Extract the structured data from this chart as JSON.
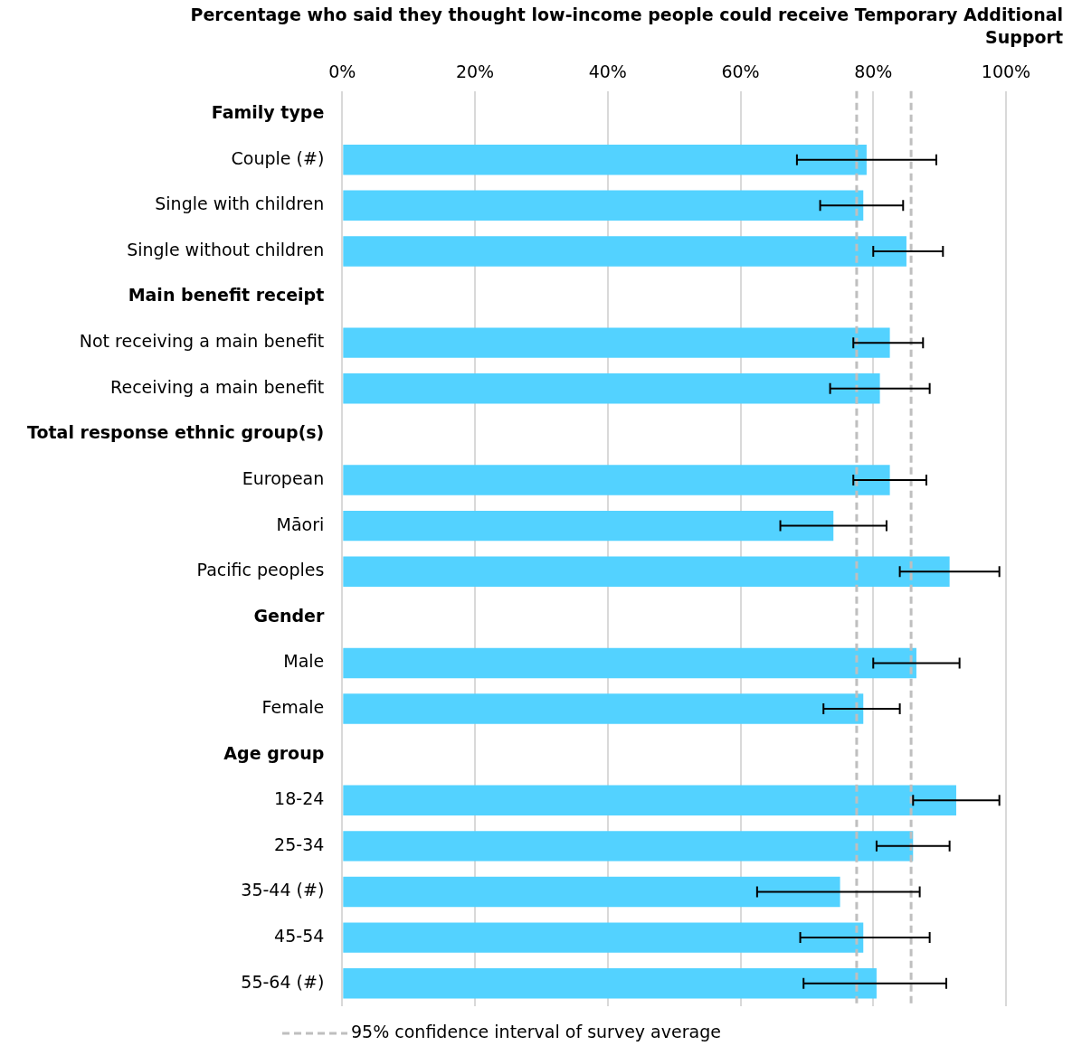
{
  "chart_data": {
    "type": "bar",
    "orientation": "horizontal",
    "title": "Percentage who said they thought low-income people could receive Temporary Additional Support",
    "categories": [
      "Family type",
      "Couple (#)",
      "Single with children",
      "Single without children",
      "Main benefit receipt",
      "Not receiving a main benefit",
      "Receiving a main benefit",
      "Total response ethnic group(s)",
      "European",
      "Māori",
      "Pacific peoples",
      "Gender",
      "Male",
      "Female",
      "Age group",
      "18-24",
      "25-34",
      "35-44 (#)",
      "45-54",
      "55-64 (#)"
    ],
    "values": [
      null,
      79,
      78.5,
      85,
      null,
      82.5,
      81,
      null,
      82.5,
      74,
      91.5,
      null,
      86.5,
      78.5,
      null,
      92.5,
      86,
      75,
      78.5,
      80.5
    ],
    "errors": [
      null,
      [
        68.5,
        89.5
      ],
      [
        72,
        84.5
      ],
      [
        80,
        90.5
      ],
      null,
      [
        77,
        87.5
      ],
      [
        73.5,
        88.5
      ],
      null,
      [
        77,
        88
      ],
      [
        66,
        82
      ],
      [
        84,
        99
      ],
      null,
      [
        80,
        93
      ],
      [
        72.5,
        84
      ],
      null,
      [
        86,
        99
      ],
      [
        80.5,
        91.5
      ],
      [
        62.5,
        87
      ],
      [
        69,
        88.5
      ],
      [
        69.5,
        91
      ]
    ],
    "color": "#53d2ff",
    "xlim": [
      0,
      100
    ],
    "xticks": [
      {
        "value": 0,
        "label": "0%"
      },
      {
        "value": 20,
        "label": "20%"
      },
      {
        "value": 40,
        "label": "40%"
      },
      {
        "value": 60,
        "label": "60%"
      },
      {
        "value": 80,
        "label": "80%"
      },
      {
        "value": 100,
        "label": "100%"
      }
    ],
    "grid": "x",
    "legend": "bottom",
    "ref_lines": [
      {
        "axis": "x",
        "value": 77.5,
        "label": "95% confidence interval of survey average",
        "color": "#bfbfbf",
        "line_style": "dashed"
      },
      {
        "axis": "x",
        "value": 85.7,
        "color": "#bfbfbf",
        "line_style": "dashed"
      }
    ]
  }
}
